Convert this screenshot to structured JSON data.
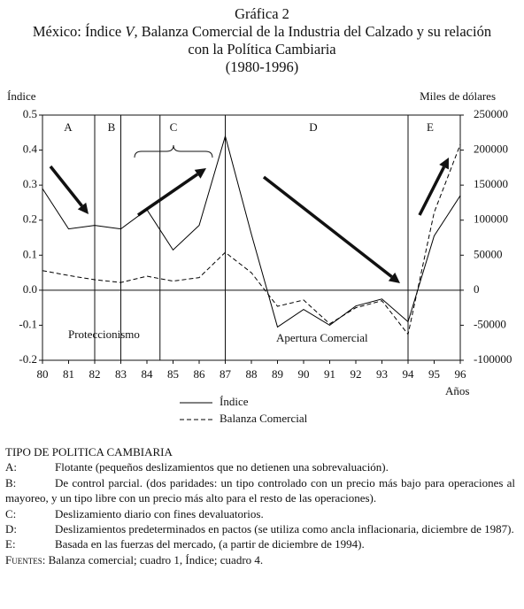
{
  "chart_data": {
    "type": "line",
    "title": "Gráfica 2",
    "subtitle": [
      "México: Índice ",
      "V",
      ", Balanza Comercial de la Industria del Calzado y su relación con la Política Cambiaria"
    ],
    "period": "(1980-1996)",
    "ylabel": "Índice",
    "y2label": "Miles de dólares",
    "xlabel": "Años",
    "x": [
      80,
      81,
      82,
      83,
      84,
      85,
      86,
      87,
      88,
      89,
      90,
      91,
      92,
      93,
      94,
      95,
      96
    ],
    "xlim": [
      80,
      96
    ],
    "xticks": [
      80,
      81,
      82,
      83,
      84,
      85,
      86,
      87,
      88,
      89,
      90,
      91,
      92,
      93,
      94,
      95,
      96
    ],
    "ylim": [
      -0.2,
      0.5
    ],
    "yticks": [
      -0.2,
      -0.1,
      {
        "value": 0,
        "label": "0.0"
      },
      0.1,
      0.2,
      0.3,
      0.4,
      0.5
    ],
    "y2lim": [
      -100000,
      250000
    ],
    "y2ticks": [
      -100000,
      -50000,
      0,
      50000,
      100000,
      150000,
      200000,
      250000
    ],
    "series": [
      {
        "name": "Índice",
        "color": "#000000",
        "dashed": false,
        "values": [
          0.29,
          0.175,
          0.185,
          0.175,
          0.23,
          0.115,
          0.185,
          0.44,
          0.16,
          -0.105,
          -0.055,
          -0.1,
          -0.045,
          -0.025,
          -0.09,
          0.155,
          0.27
        ]
      },
      {
        "name": "Balanza Comercial",
        "color": "#000000",
        "dashed": true,
        "axis": "y2",
        "values": [
          28000,
          21000,
          15000,
          11000,
          20000,
          13000,
          18000,
          54000,
          25000,
          -23000,
          -14000,
          -48000,
          -25000,
          -15000,
          -63000,
          111000,
          208000
        ]
      }
    ],
    "dividers": [
      82,
      83,
      84.5,
      87,
      94
    ],
    "regions": [
      "A",
      "B",
      "C",
      "D",
      "E"
    ],
    "annotations": [
      "Proteccionismo",
      "Apertura Comercial"
    ]
  },
  "notes": {
    "heading": "TIPO DE POLITICA CAMBIARIA",
    "items": [
      {
        "key": "A:",
        "text": "Flotante (pequeños deslizamientos que no detienen una sobrevaluación)."
      },
      {
        "key": "B:",
        "text": "De control parcial. (dos paridades: un tipo controlado con un precio más bajo para operaciones al mayoreo, y un tipo libre con un precio más alto para el resto de las operaciones)."
      },
      {
        "key": "C:",
        "text": "Deslizamiento diario con fines devaluatorios."
      },
      {
        "key": "D:",
        "text": "Deslizamientos predeterminados en pactos (se utiliza como ancla inflacionaria, diciembre de 1987)."
      },
      {
        "key": "E:",
        "text": "Basada en las fuerzas del mercado, (a partir de diciembre de 1994)."
      }
    ],
    "sources_label": "Fuentes:",
    "sources": "Balanza comercial; cuadro 1, Índice; cuadro 4."
  }
}
